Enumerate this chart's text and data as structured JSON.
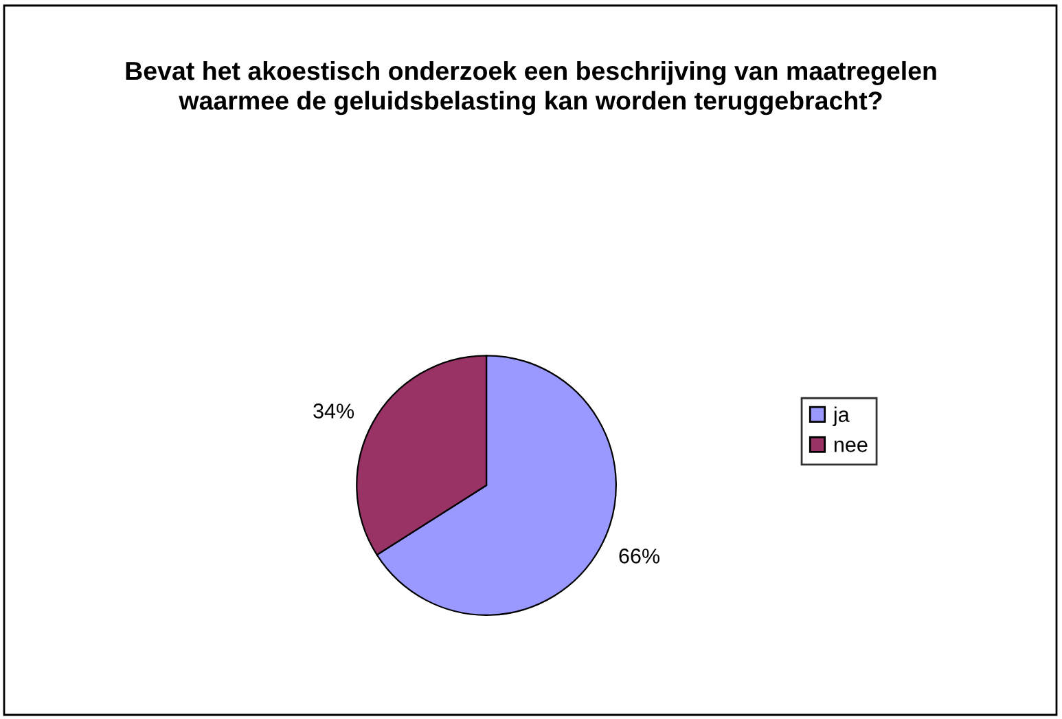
{
  "chart_data": {
    "type": "pie",
    "title": "Bevat het akoestisch onderzoek een beschrijving van maatregelen waarmee de geluidsbelasting kan worden teruggebracht?",
    "categories": [
      "ja",
      "nee"
    ],
    "values": [
      66,
      34
    ],
    "colors": [
      "#9999ff",
      "#993366"
    ],
    "value_labels": [
      "66%",
      "34%"
    ],
    "legend": "right"
  }
}
